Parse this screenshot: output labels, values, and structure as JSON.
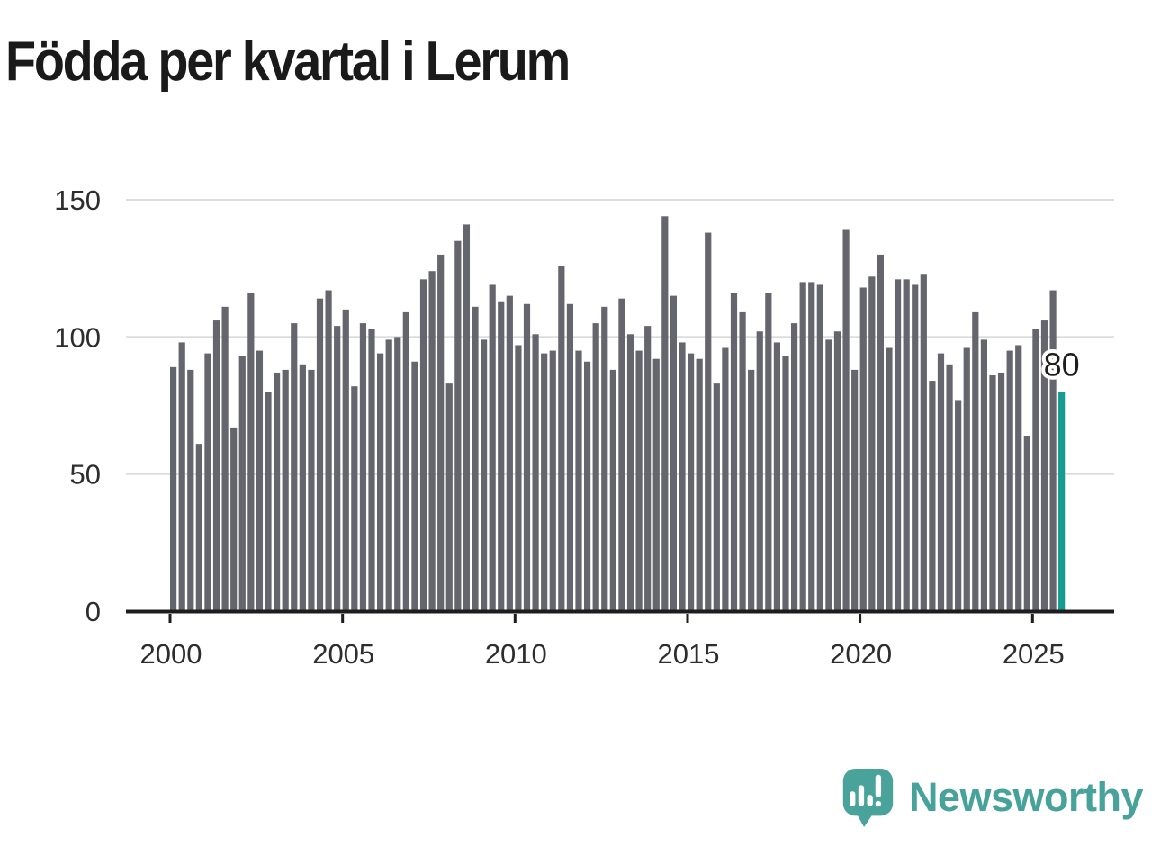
{
  "title": "Födda per kvartal i Lerum",
  "chart_data": {
    "type": "bar",
    "title": "Födda per kvartal i Lerum",
    "x_period": "quarterly",
    "x_start_year": 2000,
    "x_start_quarter": 1,
    "x_end_year": 2025,
    "x_end_quarter": 4,
    "x_tick_labels": [
      "2000",
      "2005",
      "2010",
      "2015",
      "2020",
      "2025"
    ],
    "y_ticks": [
      0,
      50,
      100,
      150
    ],
    "ylim": [
      0,
      150
    ],
    "grid": true,
    "legend": "none",
    "values": [
      89,
      98,
      88,
      61,
      94,
      106,
      111,
      67,
      93,
      116,
      95,
      80,
      87,
      88,
      105,
      90,
      88,
      114,
      117,
      104,
      110,
      82,
      105,
      103,
      94,
      99,
      100,
      109,
      91,
      121,
      124,
      130,
      83,
      135,
      141,
      111,
      99,
      119,
      113,
      115,
      97,
      112,
      101,
      94,
      95,
      126,
      112,
      95,
      91,
      105,
      111,
      88,
      114,
      101,
      95,
      104,
      92,
      144,
      115,
      98,
      94,
      92,
      138,
      83,
      96,
      116,
      109,
      88,
      102,
      116,
      98,
      93,
      105,
      120,
      120,
      119,
      99,
      102,
      139,
      88,
      118,
      122,
      130,
      96,
      121,
      121,
      119,
      123,
      84,
      94,
      90,
      77,
      96,
      109,
      99,
      86,
      87,
      95,
      97,
      64,
      103,
      106,
      117,
      80
    ],
    "highlight": {
      "index": 103,
      "label": "80",
      "color": "#169b90"
    },
    "bar_color": "#65656d",
    "axis_color": "#1d1d1d",
    "gridline_color": "#dcdcdc",
    "tick_label_color": "#2d2d2d",
    "value_label_color": "#1d1d1d",
    "value_label_halo": "#ffffff"
  },
  "branding": {
    "logo_text": "Newsworthy",
    "logo_icon": "speech-bubble-bar-chart-icon",
    "logo_color": "#46a29a",
    "logo_icon_color": "#4aa39b",
    "logo_icon_mark_color": "#ffffff"
  }
}
